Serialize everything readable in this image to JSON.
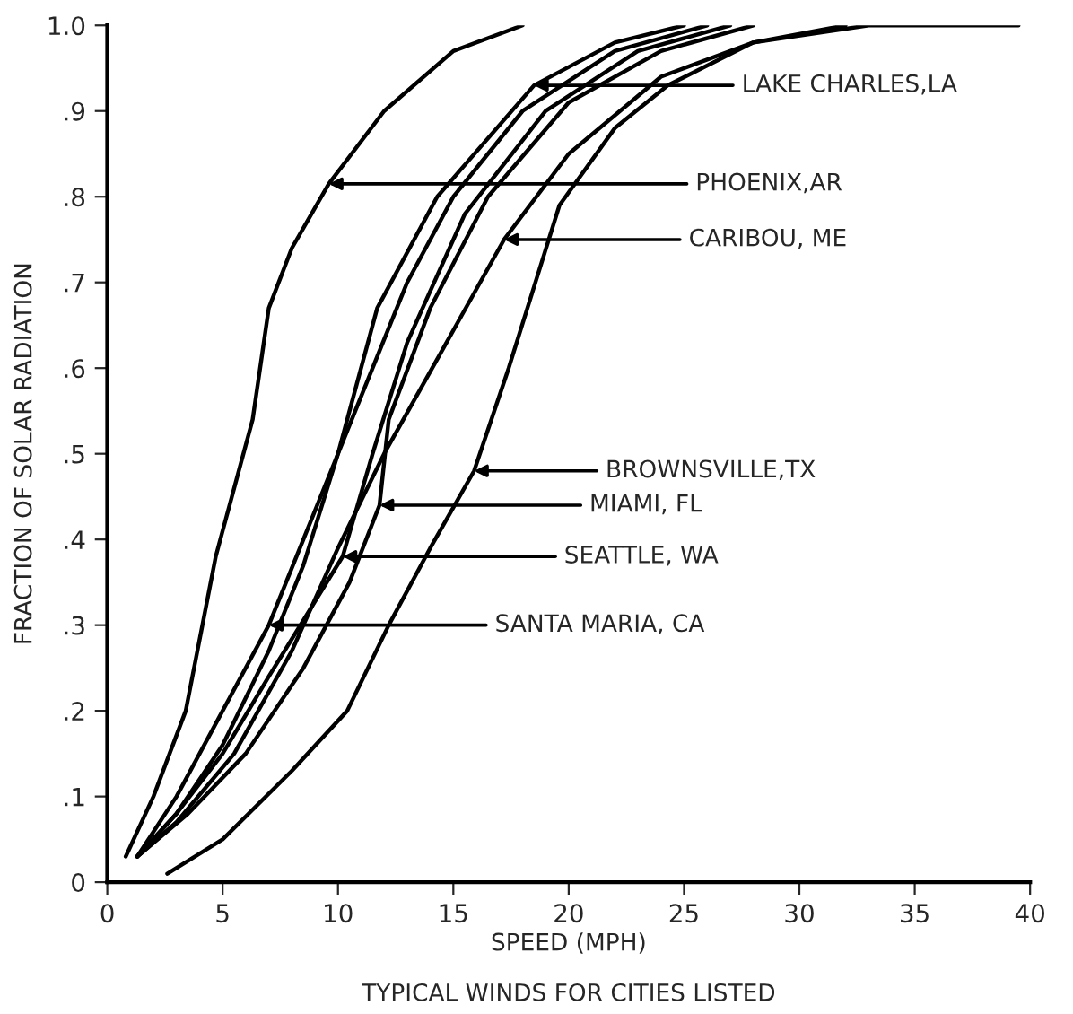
{
  "chart_data": {
    "type": "line",
    "xlabel": "SPEED (MPH)",
    "ylabel": "FRACTION OF SOLAR RADIATION",
    "xlim": [
      0,
      40
    ],
    "ylim": [
      0,
      1.0
    ],
    "xticks": [
      0,
      5,
      10,
      15,
      20,
      25,
      30,
      35,
      40
    ],
    "yticks": [
      0,
      {
        "value": 0.1,
        "label": ".1"
      },
      {
        "value": 0.2,
        "label": ".2"
      },
      {
        "value": 0.3,
        "label": ".3"
      },
      {
        "value": 0.4,
        "label": ".4"
      },
      {
        "value": 0.5,
        "label": ".5"
      },
      {
        "value": 0.6,
        "label": ".6"
      },
      {
        "value": 0.7,
        "label": ".7"
      },
      {
        "value": 0.8,
        "label": ".8"
      },
      {
        "value": 0.9,
        "label": ".9"
      },
      {
        "value": 1.0,
        "label": "1.0"
      }
    ],
    "grid": false,
    "marker": "none",
    "line_style": "solid",
    "series": [
      {
        "color": "#000000",
        "x": [
          0.8,
          2,
          3.4,
          4.7,
          6.3,
          7,
          8,
          9.6,
          12,
          15,
          18
        ],
        "values": [
          0.03,
          0.1,
          0.2,
          0.38,
          0.54,
          0.67,
          0.74,
          0.815,
          0.9,
          0.97,
          1.0
        ]
      },
      {
        "color": "#000000",
        "x": [
          1.3,
          3,
          5,
          7,
          8.5,
          10,
          11.7,
          14.3,
          18.5,
          22,
          25
        ],
        "values": [
          0.03,
          0.08,
          0.16,
          0.27,
          0.37,
          0.5,
          0.67,
          0.8,
          0.93,
          0.98,
          1.0
        ]
      },
      {
        "color": "#000000",
        "x": [
          1.3,
          3,
          5,
          7,
          8.5,
          10,
          11.5,
          13,
          15,
          18,
          22,
          26
        ],
        "values": [
          0.03,
          0.1,
          0.2,
          0.3,
          0.4,
          0.5,
          0.6,
          0.7,
          0.8,
          0.9,
          0.97,
          1.0
        ]
      },
      {
        "color": "#000000",
        "x": [
          1.3,
          3,
          5,
          7,
          10.2,
          11.5,
          13,
          15.5,
          19,
          23,
          27
        ],
        "values": [
          0.03,
          0.08,
          0.15,
          0.24,
          0.38,
          0.5,
          0.63,
          0.78,
          0.9,
          0.97,
          1.0
        ]
      },
      {
        "color": "#000000",
        "x": [
          1.3,
          3.5,
          6,
          8.5,
          10.5,
          11.8,
          12.2,
          14,
          16.5,
          20,
          24,
          28
        ],
        "values": [
          0.03,
          0.08,
          0.15,
          0.25,
          0.35,
          0.44,
          0.54,
          0.67,
          0.8,
          0.91,
          0.97,
          1.0
        ]
      },
      {
        "color": "#000000",
        "x": [
          1.3,
          3,
          5.5,
          8,
          10,
          12,
          14.5,
          17.2,
          20,
          24,
          28,
          32
        ],
        "values": [
          0.03,
          0.07,
          0.15,
          0.27,
          0.39,
          0.5,
          0.62,
          0.75,
          0.85,
          0.94,
          0.98,
          1.0
        ]
      },
      {
        "color": "#000000",
        "x": [
          2.6,
          5,
          8,
          10.4,
          12.2,
          14,
          15.9,
          17.4,
          19.6,
          22,
          24.3,
          28,
          33,
          39.5
        ],
        "values": [
          0.01,
          0.05,
          0.13,
          0.2,
          0.3,
          0.39,
          0.48,
          0.6,
          0.79,
          0.88,
          0.93,
          0.98,
          1.0,
          1.0
        ]
      }
    ],
    "annotations": [
      {
        "text": "LAKE CHARLES,LA",
        "x": 18.5,
        "y": 0.93
      },
      {
        "text": "PHOENIX,AR",
        "x": 9.6,
        "y": 0.815
      },
      {
        "text": "CARIBOU, ME",
        "x": 17.2,
        "y": 0.75
      },
      {
        "text": "BROWNSVILLE,TX",
        "x": 15.9,
        "y": 0.48
      },
      {
        "text": "MIAMI, FL",
        "x": 11.8,
        "y": 0.44
      },
      {
        "text": "SEATTLE, WA",
        "x": 10.2,
        "y": 0.38
      },
      {
        "text": "SANTA MARIA, CA",
        "x": 7,
        "y": 0.3
      },
      "TYPICAL WINDS FOR CITIES LISTED"
    ]
  }
}
